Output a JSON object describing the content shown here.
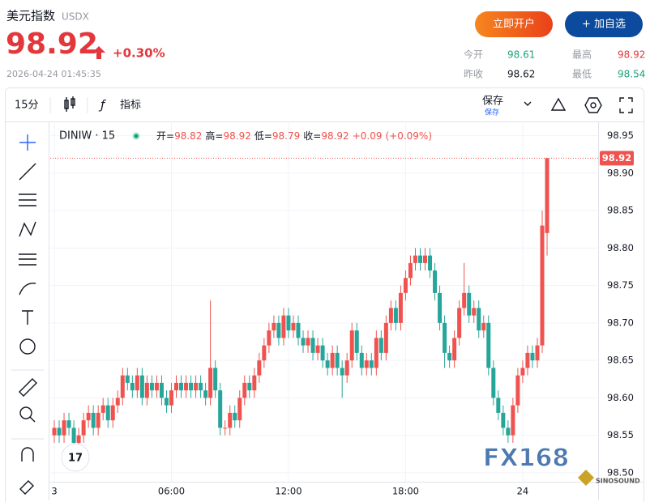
{
  "header": {
    "title": "美元指数",
    "symbol": "USDX",
    "price": 98.92,
    "change_pct": "+0.30%",
    "datetime": "2026-04-24 01:45:35",
    "open_button": "立即开户",
    "watch_button": "+ 加自选",
    "stats": [
      {
        "label": "今开",
        "value": 98.61
      },
      {
        "label": "最高",
        "value": 98.92
      },
      {
        "label": "昨收",
        "value": 98.62
      },
      {
        "label": "最低",
        "value": 98.54
      }
    ]
  },
  "toolbar": {
    "interval": "15分",
    "indicators": "指标",
    "save": "保存",
    "save_sub": "保存"
  },
  "chart_data": {
    "type": "candlestick",
    "legend": {
      "name": "DINIW · 15",
      "items": [
        {
          "label": "开=",
          "value": 98.82
        },
        {
          "label": "高=",
          "value": 98.92
        },
        {
          "label": "低=",
          "value": 98.79
        },
        {
          "label": "收=",
          "value": 98.92
        }
      ],
      "change": "+0.09",
      "change_pct": "(+0.09%)"
    },
    "categories": [
      "3",
      null,
      null,
      null,
      null,
      null,
      null,
      null,
      null,
      null,
      null,
      null,
      null,
      null,
      null,
      null,
      null,
      null,
      null,
      null,
      null,
      null,
      null,
      null,
      "06:00",
      null,
      null,
      null,
      null,
      null,
      null,
      null,
      null,
      null,
      null,
      null,
      null,
      null,
      null,
      null,
      null,
      null,
      null,
      null,
      null,
      null,
      null,
      null,
      "12:00",
      null,
      null,
      null,
      null,
      null,
      null,
      null,
      null,
      null,
      null,
      null,
      null,
      null,
      null,
      null,
      null,
      null,
      null,
      null,
      null,
      null,
      null,
      null,
      "18:00",
      null,
      null,
      null,
      null,
      null,
      null,
      null,
      null,
      null,
      null,
      null,
      null,
      null,
      null,
      null,
      null,
      null,
      null,
      null,
      null,
      null,
      null,
      null,
      "24",
      null,
      null,
      null,
      null,
      null
    ],
    "open": [
      98.55,
      98.56,
      98.55,
      98.57,
      98.56,
      98.54,
      98.55,
      98.57,
      98.58,
      98.56,
      98.58,
      98.59,
      98.57,
      98.59,
      98.6,
      98.63,
      98.62,
      98.61,
      98.63,
      98.6,
      98.62,
      98.61,
      98.62,
      98.6,
      98.59,
      98.61,
      98.62,
      98.61,
      98.62,
      98.61,
      98.62,
      98.61,
      98.6,
      98.64,
      98.61,
      98.56,
      98.56,
      98.58,
      98.57,
      98.6,
      98.62,
      98.61,
      98.63,
      98.65,
      98.67,
      98.69,
      98.7,
      98.68,
      98.71,
      98.69,
      98.7,
      98.68,
      98.67,
      98.68,
      98.66,
      98.67,
      98.65,
      98.64,
      98.66,
      98.64,
      98.63,
      98.65,
      98.69,
      98.66,
      98.64,
      98.65,
      98.64,
      98.68,
      98.66,
      98.7,
      98.72,
      98.7,
      98.74,
      98.76,
      98.78,
      98.79,
      98.78,
      98.79,
      98.77,
      98.74,
      98.7,
      98.66,
      98.65,
      98.68,
      98.72,
      98.74,
      98.71,
      98.72,
      98.69,
      98.7,
      98.64,
      98.6,
      98.58,
      98.56,
      98.55,
      98.59,
      98.63,
      98.64,
      98.66,
      98.65,
      98.67,
      98.82
    ],
    "high": [
      98.57,
      98.57,
      98.58,
      98.58,
      98.57,
      98.56,
      98.58,
      98.59,
      98.59,
      98.59,
      98.6,
      98.6,
      98.6,
      98.61,
      98.64,
      98.64,
      98.63,
      98.64,
      98.64,
      98.63,
      98.63,
      98.63,
      98.63,
      98.61,
      98.62,
      98.63,
      98.63,
      98.63,
      98.63,
      98.63,
      98.63,
      98.62,
      98.73,
      98.65,
      98.62,
      98.57,
      98.59,
      98.59,
      98.61,
      98.63,
      98.63,
      98.64,
      98.66,
      98.68,
      98.7,
      98.71,
      98.71,
      98.72,
      98.72,
      98.71,
      98.71,
      98.69,
      98.69,
      98.69,
      98.68,
      98.68,
      98.66,
      98.67,
      98.67,
      98.65,
      98.66,
      98.7,
      98.7,
      98.67,
      98.66,
      98.66,
      98.69,
      98.69,
      98.71,
      98.73,
      98.73,
      98.75,
      98.77,
      98.79,
      98.8,
      98.8,
      98.8,
      98.8,
      98.78,
      98.75,
      98.71,
      98.67,
      98.69,
      98.73,
      98.78,
      98.75,
      98.73,
      98.73,
      98.71,
      98.71,
      98.65,
      98.61,
      98.59,
      98.57,
      98.6,
      98.64,
      98.65,
      98.67,
      98.67,
      98.68,
      98.85,
      98.92
    ],
    "low": [
      98.54,
      98.54,
      98.54,
      98.55,
      98.53,
      98.53,
      98.54,
      98.56,
      98.55,
      98.55,
      98.57,
      98.56,
      98.56,
      98.58,
      98.59,
      98.61,
      98.6,
      98.6,
      98.59,
      98.59,
      98.6,
      98.6,
      98.59,
      98.58,
      98.58,
      98.6,
      98.6,
      98.6,
      98.6,
      98.6,
      98.6,
      98.59,
      98.59,
      98.6,
      98.55,
      98.55,
      98.55,
      98.56,
      98.56,
      98.59,
      98.6,
      98.6,
      98.62,
      98.64,
      98.66,
      98.68,
      98.67,
      98.67,
      98.68,
      98.68,
      98.67,
      98.66,
      98.66,
      98.65,
      98.65,
      98.64,
      98.63,
      98.63,
      98.63,
      98.6,
      98.62,
      98.64,
      98.65,
      98.63,
      98.63,
      98.63,
      98.63,
      98.65,
      98.65,
      98.69,
      98.69,
      98.69,
      98.73,
      98.75,
      98.77,
      98.77,
      98.77,
      98.76,
      98.73,
      98.69,
      98.64,
      98.64,
      98.64,
      98.67,
      98.71,
      98.7,
      98.7,
      98.68,
      98.68,
      98.63,
      98.59,
      98.57,
      98.55,
      98.54,
      98.54,
      98.58,
      98.62,
      98.63,
      98.64,
      98.64,
      98.66,
      98.79
    ],
    "close": [
      98.56,
      98.55,
      98.57,
      98.56,
      98.54,
      98.55,
      98.57,
      98.58,
      98.56,
      98.58,
      98.59,
      98.57,
      98.59,
      98.6,
      98.63,
      98.62,
      98.61,
      98.63,
      98.6,
      98.62,
      98.61,
      98.62,
      98.6,
      98.59,
      98.61,
      98.62,
      98.61,
      98.62,
      98.61,
      98.62,
      98.61,
      98.6,
      98.64,
      98.61,
      98.56,
      98.56,
      98.58,
      98.57,
      98.6,
      98.62,
      98.61,
      98.63,
      98.65,
      98.67,
      98.69,
      98.7,
      98.68,
      98.71,
      98.69,
      98.7,
      98.68,
      98.67,
      98.68,
      98.66,
      98.67,
      98.65,
      98.64,
      98.66,
      98.64,
      98.63,
      98.65,
      98.69,
      98.66,
      98.64,
      98.65,
      98.64,
      98.68,
      98.66,
      98.7,
      98.72,
      98.7,
      98.74,
      98.76,
      98.78,
      98.79,
      98.78,
      98.79,
      98.77,
      98.74,
      98.7,
      98.66,
      98.65,
      98.68,
      98.72,
      98.74,
      98.71,
      98.72,
      98.69,
      98.7,
      98.64,
      98.6,
      98.58,
      98.56,
      98.55,
      98.59,
      98.63,
      98.64,
      98.66,
      98.65,
      98.67,
      98.83,
      98.92
    ],
    "up_color": "#ef5350",
    "down_color": "#26a69a",
    "ylim": [
      98.488,
      98.969
    ],
    "yticks": [
      {
        "value": 98.5,
        "label": "98.50"
      },
      98.55,
      {
        "value": 98.6,
        "label": "98.60"
      },
      98.65,
      {
        "value": 98.7,
        "label": "98.70"
      },
      98.75,
      {
        "value": 98.8,
        "label": "98.80"
      },
      98.85,
      {
        "value": 98.9,
        "label": "98.90"
      },
      98.95
    ],
    "grid": true,
    "watermark": "FX168",
    "watermark_sub": "SINOSOUND"
  }
}
